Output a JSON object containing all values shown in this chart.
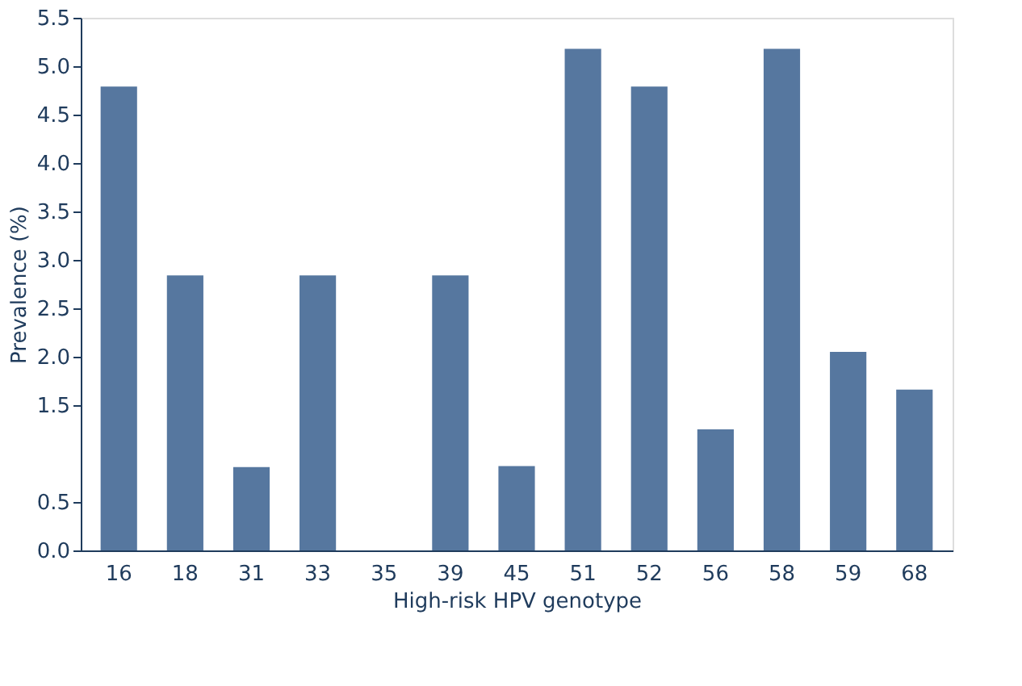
{
  "chart_data": {
    "type": "bar",
    "xlabel": "High-risk HPV genotype",
    "ylabel": "Prevalence (%)",
    "categories": [
      "16",
      "18",
      "31",
      "33",
      "35",
      "39",
      "45",
      "51",
      "52",
      "56",
      "58",
      "59",
      "68"
    ],
    "values": [
      4.79,
      2.84,
      0.86,
      2.84,
      null,
      2.84,
      0.87,
      5.18,
      4.79,
      1.25,
      5.18,
      2.05,
      1.66
    ],
    "color": "#56779f",
    "ylim": [
      0,
      5.5
    ],
    "yticks": [
      {
        "value": 0,
        "label": "0.0"
      },
      0.5,
      1.5,
      {
        "value": 2,
        "label": "2.0"
      },
      2.5,
      {
        "value": 3,
        "label": "3.0"
      },
      3.5,
      {
        "value": 4,
        "label": "4.0"
      },
      4.5,
      {
        "value": 5,
        "label": "5.0"
      },
      5.5
    ],
    "grid": false
  }
}
